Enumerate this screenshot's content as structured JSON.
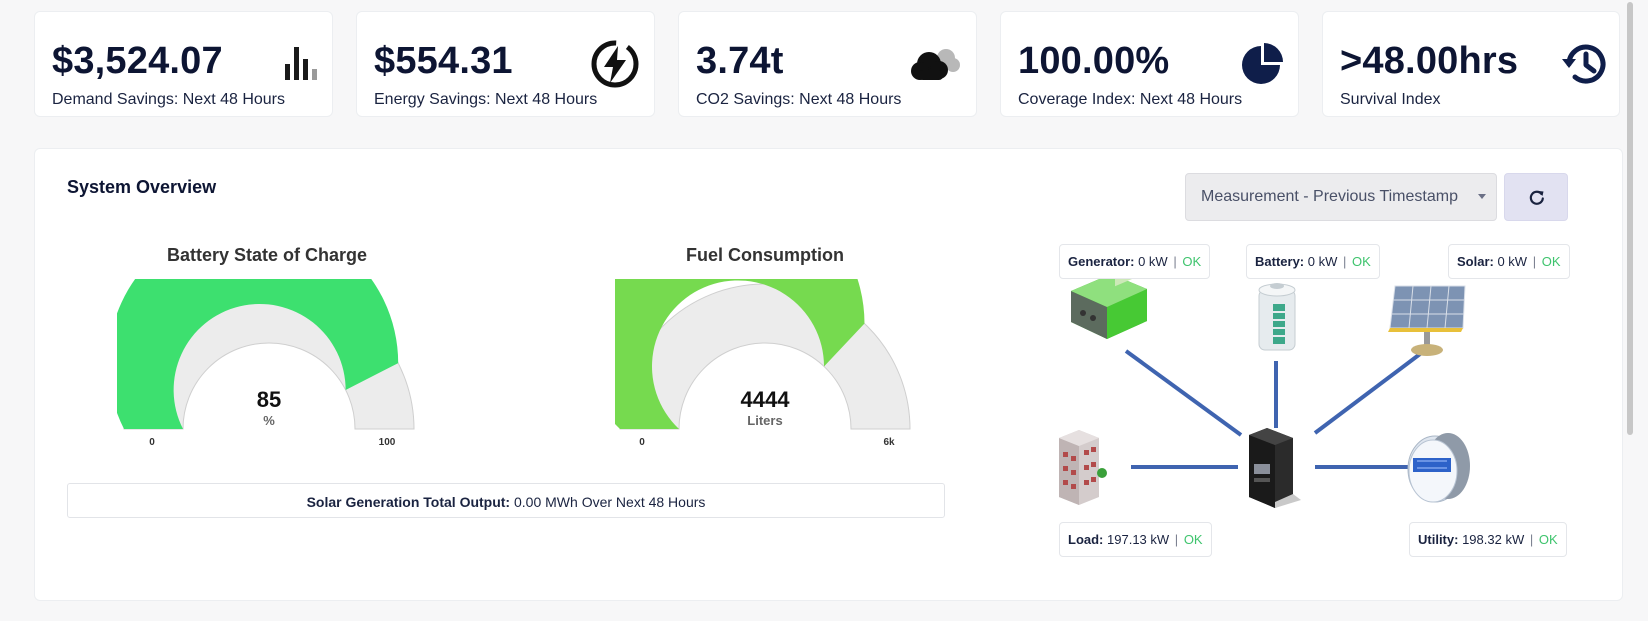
{
  "kpis": [
    {
      "value": "$3,524.07",
      "label": "Demand Savings: Next 48 Hours",
      "icon": "bar-chart-icon"
    },
    {
      "value": "$554.31",
      "label": "Energy Savings: Next 48 Hours",
      "icon": "lightning-icon"
    },
    {
      "value": "3.74t",
      "label": "CO2 Savings: Next 48 Hours",
      "icon": "cloud-icon"
    },
    {
      "value": "100.00%",
      "label": "Coverage Index: Next 48 Hours",
      "icon": "pie-chart-icon"
    },
    {
      "value": ">48.00hrs",
      "label": "Survival Index",
      "icon": "history-icon"
    }
  ],
  "overview": {
    "title": "System Overview",
    "select_value": "Measurement - Previous Timestamp",
    "refresh_icon": "refresh-icon"
  },
  "gauges": [
    {
      "title": "Battery State of Charge",
      "value": "85",
      "unit": "%",
      "min": "0",
      "max": "100",
      "fraction": 0.85,
      "color": "#3de06f"
    },
    {
      "title": "Fuel Consumption",
      "value": "4444",
      "unit": "Liters",
      "min": "0",
      "max": "6k",
      "fraction": 0.7407,
      "color": "#76da4f"
    }
  ],
  "solar_output": {
    "label": "Solar Generation Total Output:",
    "text": "0.00 MWh Over Next 48 Hours"
  },
  "nodes": {
    "generator": {
      "label": "Generator:",
      "value": "0 kW",
      "status": "OK"
    },
    "battery": {
      "label": "Battery:",
      "value": "0 kW",
      "status": "OK"
    },
    "solar": {
      "label": "Solar:",
      "value": "0 kW",
      "status": "OK"
    },
    "load": {
      "label": "Load:",
      "value": "197.13 kW",
      "status": "OK"
    },
    "utility": {
      "label": "Utility:",
      "value": "198.32 kW",
      "status": "OK"
    }
  },
  "colors": {
    "ok": "#3ec46d",
    "line": "#3f64b0",
    "gauge_bg": "#ececec"
  }
}
